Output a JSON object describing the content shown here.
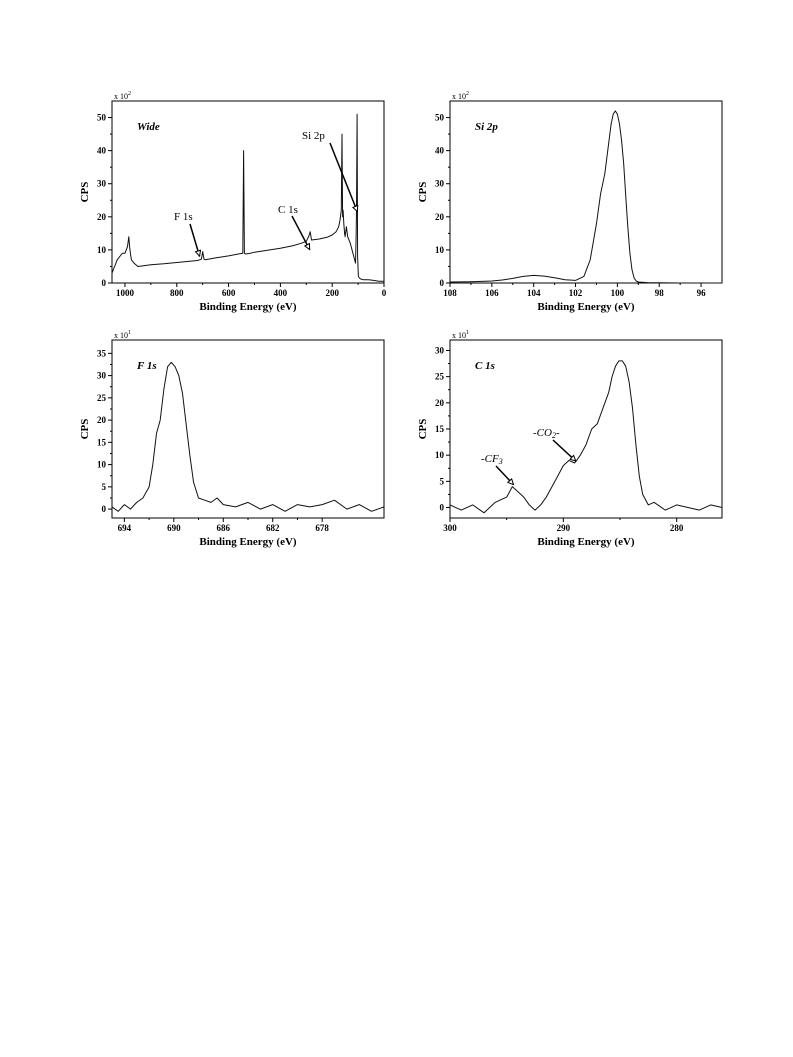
{
  "chart_data": [
    {
      "type": "line",
      "id": "wide",
      "panel_title": "Wide",
      "xlabel": "Binding Energy (eV)",
      "ylabel": "CPS",
      "y_multiplier": "x 10",
      "y_multiplier_exp": "2",
      "xlim": [
        1050,
        0
      ],
      "ylim": [
        0,
        55
      ],
      "xticks": [
        1000,
        800,
        600,
        400,
        200,
        0
      ],
      "yticks": [
        0,
        10,
        20,
        30,
        40,
        50
      ],
      "series": [
        {
          "x": [
            1050,
            1040,
            1030,
            1020,
            1010,
            1000,
            990,
            985,
            982,
            979,
            975,
            965,
            950,
            900,
            850,
            800,
            750,
            720,
            705,
            700,
            695,
            690,
            650,
            600,
            560,
            545,
            542,
            539,
            536,
            530,
            520,
            500,
            450,
            400,
            350,
            320,
            300,
            290,
            285,
            280,
            250,
            220,
            200,
            185,
            175,
            170,
            165,
            162,
            160,
            158,
            155,
            152,
            150,
            145,
            140,
            130,
            120,
            110,
            108,
            106,
            104,
            102,
            100,
            99,
            95,
            90,
            80,
            60,
            40,
            20,
            0
          ],
          "y": [
            3,
            5,
            7,
            8,
            9,
            9,
            11,
            14,
            11,
            9,
            7,
            6,
            5,
            5.5,
            5.8,
            6.2,
            6.6,
            6.8,
            7.2,
            9.5,
            7.2,
            7,
            7.6,
            8.2,
            8.8,
            9,
            40,
            9,
            8.8,
            8.8,
            8.9,
            9.3,
            9.9,
            10.5,
            11.3,
            12,
            12.6,
            14.2,
            15.5,
            13,
            13.3,
            13.8,
            14.5,
            15.5,
            17,
            19,
            22,
            45,
            20,
            22,
            18,
            15,
            14,
            17,
            14,
            12,
            9,
            6,
            12,
            22,
            51,
            8,
            4,
            2,
            1.5,
            1.2,
            1,
            1,
            0.8,
            0.5,
            0.5
          ]
        }
      ],
      "annotations": [
        {
          "text": "F 1s",
          "x": 712,
          "y": 7.5
        },
        {
          "text": "C 1s",
          "x": 287,
          "y": 9.5
        },
        {
          "text": "Si 2p",
          "x": 103,
          "y": 21
        }
      ]
    },
    {
      "type": "line",
      "id": "si2p",
      "panel_title": "Si 2p",
      "xlabel": "Binding Energy (eV)",
      "ylabel": "CPS",
      "y_multiplier": "x 10",
      "y_multiplier_exp": "2",
      "xlim": [
        108,
        95
      ],
      "ylim": [
        0,
        55
      ],
      "xticks": [
        108,
        106,
        104,
        102,
        100,
        98,
        96
      ],
      "yticks": [
        0,
        10,
        20,
        30,
        40,
        50
      ],
      "series": [
        {
          "x": [
            108,
            107,
            106,
            105.5,
            105,
            104.5,
            104,
            103.5,
            103,
            102.5,
            102,
            101.6,
            101.3,
            101,
            100.8,
            100.6,
            100.5,
            100.4,
            100.3,
            100.2,
            100.1,
            100,
            99.9,
            99.8,
            99.7,
            99.6,
            99.5,
            99.4,
            99.3,
            99.2,
            99.1,
            99,
            98.5,
            98,
            97,
            96,
            95
          ],
          "y": [
            0.3,
            0.4,
            0.6,
            0.9,
            1.4,
            2,
            2.3,
            2.1,
            1.6,
            1,
            0.8,
            2,
            7,
            18,
            27,
            33,
            38,
            43,
            48,
            51,
            52,
            51,
            48,
            43,
            36,
            26,
            17,
            9,
            4,
            1.5,
            0.6,
            0.3,
            0.1,
            0.1,
            0,
            0,
            0
          ]
        }
      ],
      "annotations": []
    },
    {
      "type": "line",
      "id": "f1s",
      "panel_title": "F 1s",
      "xlabel": "Binding Energy (eV)",
      "ylabel": "CPS",
      "y_multiplier": "x 10",
      "y_multiplier_exp": "1",
      "xlim": [
        695,
        673
      ],
      "ylim": [
        -2,
        38
      ],
      "xticks": [
        694,
        690,
        686,
        682,
        678
      ],
      "yticks": [
        0,
        5,
        10,
        15,
        20,
        25,
        30,
        35
      ],
      "series": [
        {
          "x": [
            695,
            694.5,
            694,
            693.5,
            693,
            692.5,
            692,
            691.7,
            691.4,
            691.1,
            690.8,
            690.5,
            690.2,
            689.9,
            689.6,
            689.3,
            689,
            688.7,
            688.4,
            688,
            687.5,
            687,
            686.5,
            686,
            685,
            684,
            683,
            682,
            681,
            680,
            679,
            678,
            677,
            676,
            675,
            674,
            673
          ],
          "y": [
            0.5,
            -0.5,
            1,
            0,
            1.5,
            2.5,
            5,
            10,
            17,
            20,
            27,
            32,
            33,
            32,
            30,
            26,
            19,
            12,
            6,
            2.5,
            2,
            1.5,
            2.5,
            1,
            0.5,
            1.5,
            0,
            1,
            -0.5,
            1,
            0.5,
            1,
            2,
            0,
            1,
            -0.5,
            0.5
          ]
        }
      ],
      "annotations": []
    },
    {
      "type": "line",
      "id": "c1s",
      "panel_title": "C 1s",
      "xlabel": "Binding Energy (eV)",
      "ylabel": "CPS",
      "y_multiplier": "x 10",
      "y_multiplier_exp": "1",
      "xlim": [
        300,
        276
      ],
      "ylim": [
        -2,
        32
      ],
      "xticks": [
        300,
        290,
        280
      ],
      "yticks": [
        0,
        5,
        10,
        15,
        20,
        25,
        30
      ],
      "series": [
        {
          "x": [
            300,
            299,
            298,
            297,
            296,
            295.5,
            295,
            294.5,
            294,
            293.5,
            293,
            292.5,
            292,
            291.5,
            291,
            290.5,
            290,
            289.5,
            289,
            288.5,
            288,
            287.5,
            287,
            286.5,
            286,
            285.7,
            285.4,
            285.1,
            284.8,
            284.5,
            284.2,
            283.9,
            283.6,
            283.3,
            283,
            282.5,
            282,
            281,
            280,
            279,
            278,
            277,
            276
          ],
          "y": [
            0.5,
            -0.5,
            0.5,
            -1,
            1,
            1.5,
            2,
            4,
            3,
            2,
            0.5,
            -0.5,
            0.5,
            2,
            4,
            6,
            8,
            9,
            8.5,
            10,
            12,
            15,
            16,
            19,
            22,
            25,
            27,
            28,
            28,
            27,
            24,
            19,
            12,
            6,
            2.5,
            0.5,
            1,
            -0.5,
            0.5,
            0,
            -0.5,
            0.5,
            0
          ]
        }
      ],
      "annotations": [
        {
          "text": "-CF",
          "sub": "3",
          "x": 294.4,
          "y": 4
        },
        {
          "text": "-CO",
          "sub": "2",
          "suffix": "-",
          "x": 288.9,
          "y": 8.5
        }
      ]
    }
  ]
}
